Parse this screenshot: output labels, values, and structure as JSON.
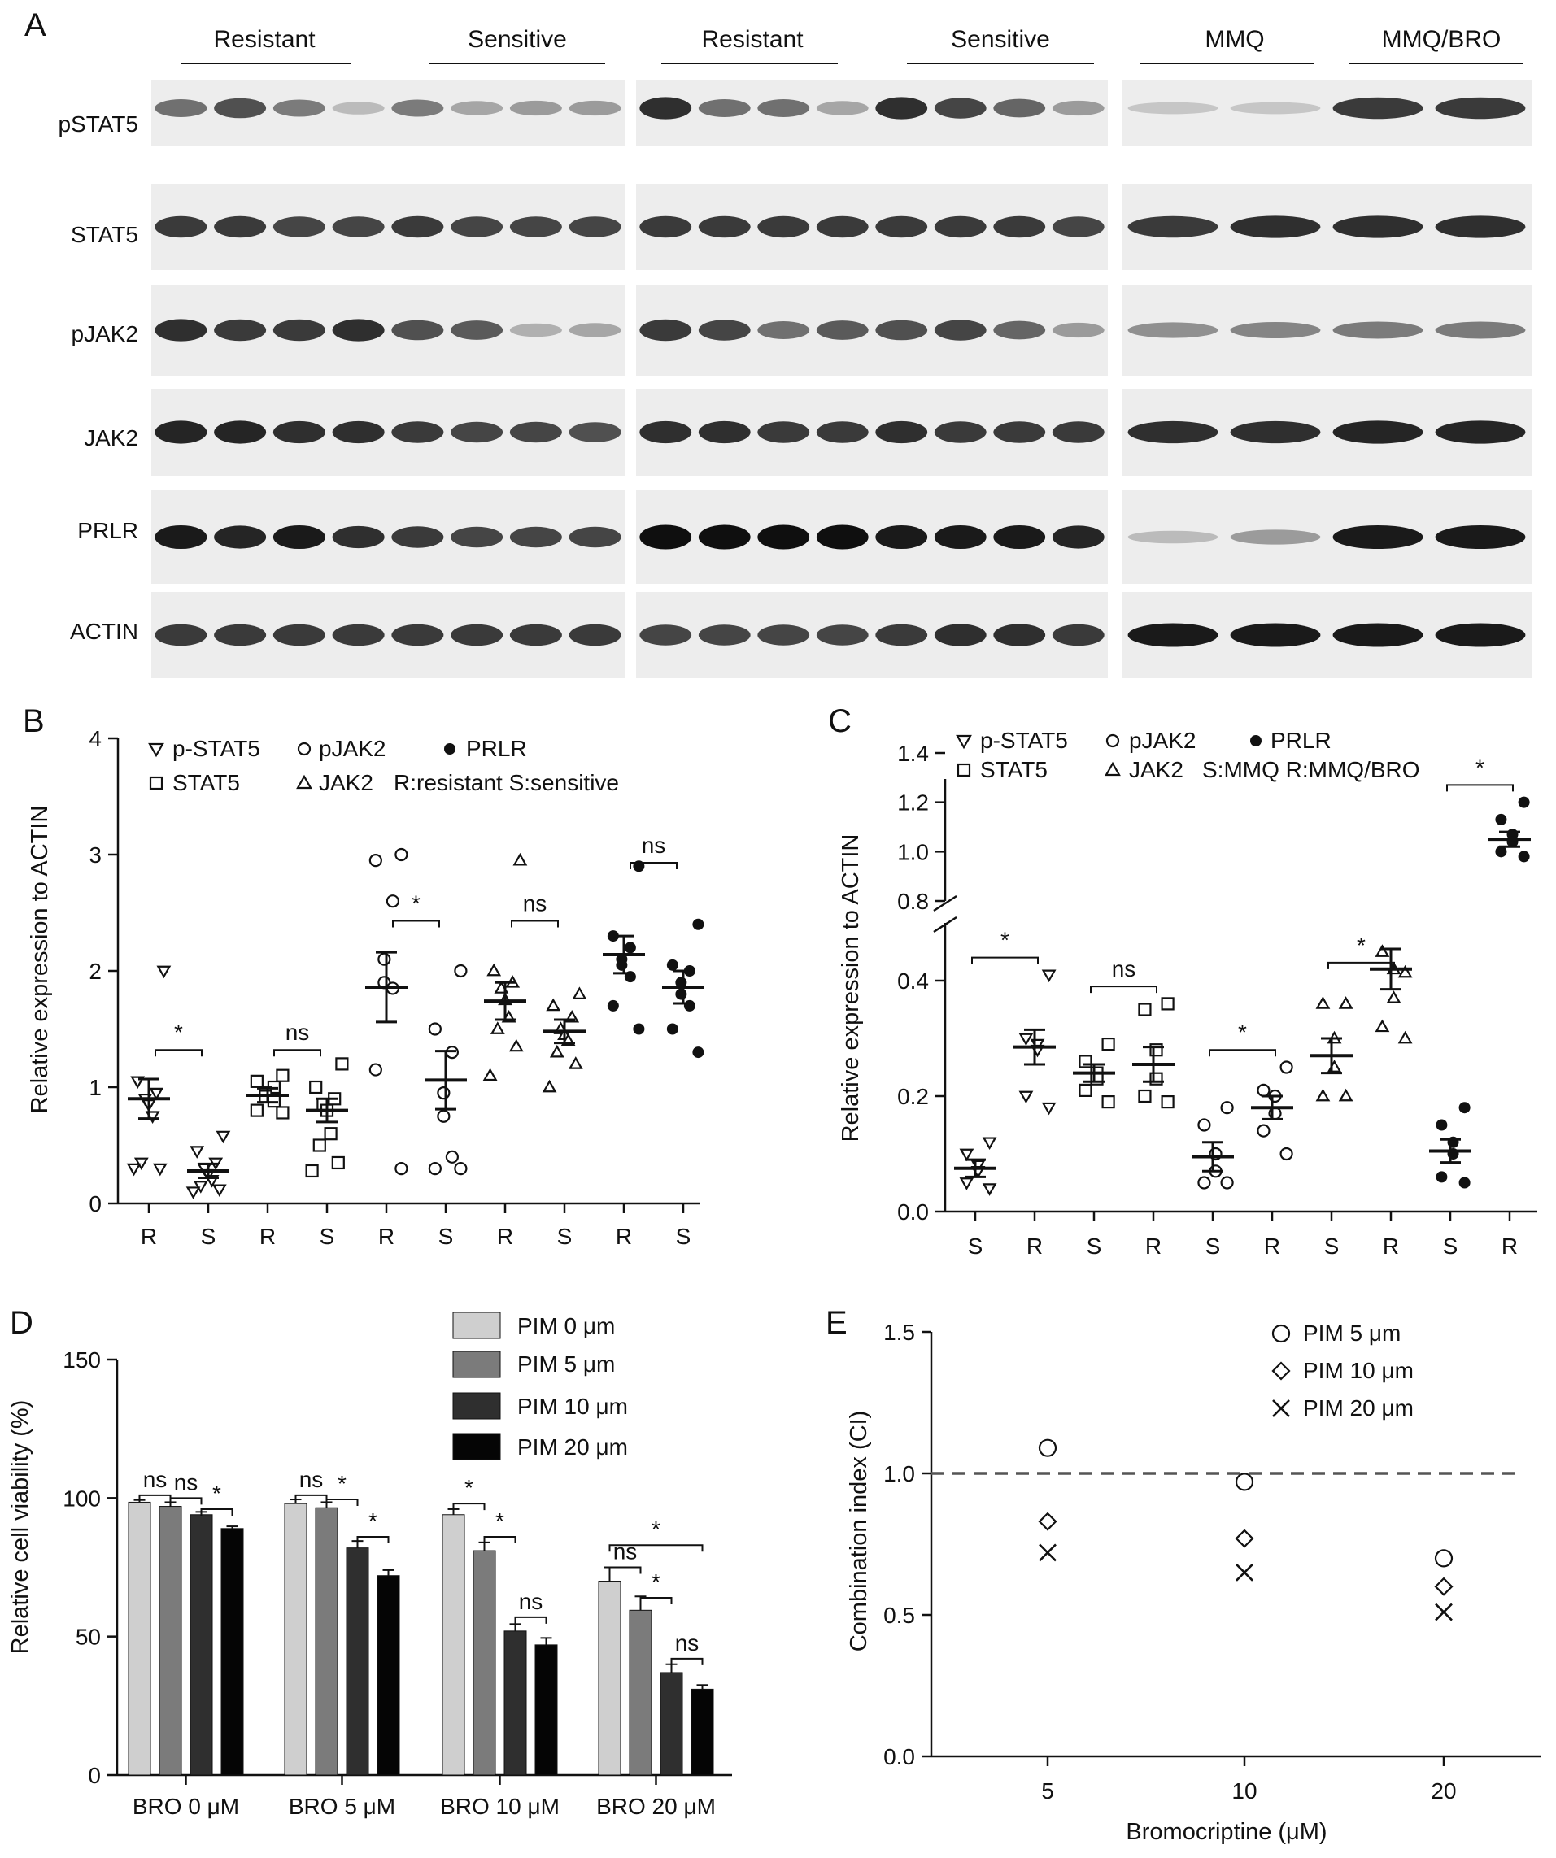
{
  "panels": {
    "A": "A",
    "B": "B",
    "C": "C",
    "D": "D",
    "E": "E"
  },
  "blot": {
    "groups": [
      "Resistant",
      "Sensitive",
      "Resistant",
      "Sensitive",
      "MMQ",
      "MMQ/BRO"
    ],
    "rows": [
      "pSTAT5",
      "STAT5",
      "pJAK2",
      "JAK2",
      "PRLR",
      "ACTIN"
    ],
    "intensity": {
      "left": [
        [
          0.55,
          0.7,
          0.5,
          0.2,
          0.5,
          0.3,
          0.35,
          0.35
        ],
        [
          0.8,
          0.8,
          0.75,
          0.75,
          0.8,
          0.75,
          0.75,
          0.75
        ],
        [
          0.85,
          0.8,
          0.8,
          0.85,
          0.7,
          0.65,
          0.25,
          0.3
        ],
        [
          0.9,
          0.9,
          0.85,
          0.85,
          0.8,
          0.75,
          0.75,
          0.7
        ],
        [
          0.95,
          0.9,
          0.95,
          0.85,
          0.8,
          0.75,
          0.75,
          0.75
        ],
        [
          0.8,
          0.8,
          0.8,
          0.8,
          0.8,
          0.8,
          0.8,
          0.8
        ]
      ],
      "middle": [
        [
          0.85,
          0.55,
          0.55,
          0.3,
          0.85,
          0.75,
          0.6,
          0.35
        ],
        [
          0.8,
          0.8,
          0.8,
          0.8,
          0.8,
          0.8,
          0.8,
          0.75
        ],
        [
          0.8,
          0.75,
          0.55,
          0.65,
          0.7,
          0.75,
          0.6,
          0.35
        ],
        [
          0.85,
          0.85,
          0.8,
          0.8,
          0.85,
          0.8,
          0.8,
          0.8
        ],
        [
          1,
          1,
          1,
          1,
          0.95,
          0.95,
          0.95,
          0.9
        ],
        [
          0.75,
          0.75,
          0.75,
          0.75,
          0.8,
          0.85,
          0.85,
          0.8
        ]
      ],
      "right": [
        [
          0.15,
          0.15,
          0.8,
          0.8
        ],
        [
          0.8,
          0.85,
          0.85,
          0.85
        ],
        [
          0.4,
          0.45,
          0.5,
          0.5
        ],
        [
          0.85,
          0.85,
          0.9,
          0.9
        ],
        [
          0.2,
          0.35,
          0.95,
          0.95
        ],
        [
          0.95,
          0.95,
          0.95,
          0.95
        ]
      ]
    }
  },
  "chart_data": [
    {
      "id": "B",
      "type": "scatter",
      "ylabel": "Relative expression to ACTIN",
      "ylim": [
        0,
        4
      ],
      "yticks": [
        "0",
        "1",
        "2",
        "3",
        "4"
      ],
      "categories": [
        "R",
        "S",
        "R",
        "S",
        "R",
        "S",
        "R",
        "S",
        "R",
        "S"
      ],
      "legend": {
        "row1": [
          {
            "symbol": "tri-down",
            "label": "p-STAT5"
          },
          {
            "symbol": "circle-open",
            "label": "pJAK2"
          },
          {
            "symbol": "circle-filled",
            "label": "PRLR"
          }
        ],
        "row2": [
          {
            "symbol": "square",
            "label": "STAT5"
          },
          {
            "symbol": "tri-up",
            "label": "JAK2"
          }
        ],
        "note": "R:resistant S:sensitive"
      },
      "groups": [
        {
          "series": "p-STAT5",
          "group": "R",
          "marker": "tri-down",
          "mean": 0.9,
          "sem": 0.17,
          "points": [
            2.0,
            1.05,
            0.95,
            0.9,
            0.85,
            0.75,
            0.35,
            0.3,
            0.3
          ]
        },
        {
          "series": "p-STAT5",
          "group": "S",
          "marker": "tri-down",
          "mean": 0.28,
          "sem": 0.06,
          "points": [
            0.58,
            0.45,
            0.35,
            0.3,
            0.25,
            0.2,
            0.15,
            0.12,
            0.1
          ]
        },
        {
          "series": "STAT5",
          "group": "R",
          "marker": "square",
          "mean": 0.93,
          "sem": 0.06,
          "points": [
            1.1,
            1.05,
            1.0,
            0.95,
            0.92,
            0.88,
            0.8,
            0.78
          ]
        },
        {
          "series": "STAT5",
          "group": "S",
          "marker": "square",
          "mean": 0.8,
          "sem": 0.1,
          "points": [
            1.2,
            1.0,
            0.9,
            0.85,
            0.8,
            0.6,
            0.5,
            0.35,
            0.28
          ]
        },
        {
          "series": "pJAK2",
          "group": "R",
          "marker": "circle-open",
          "mean": 1.86,
          "sem": 0.3,
          "points": [
            3.0,
            2.95,
            2.6,
            2.1,
            1.9,
            1.85,
            1.15,
            0.3
          ]
        },
        {
          "series": "pJAK2",
          "group": "S",
          "marker": "circle-open",
          "mean": 1.06,
          "sem": 0.25,
          "points": [
            2.0,
            1.5,
            1.3,
            0.95,
            0.75,
            0.4,
            0.3,
            0.3
          ]
        },
        {
          "series": "JAK2",
          "group": "R",
          "marker": "tri-up",
          "mean": 1.74,
          "sem": 0.16,
          "points": [
            2.95,
            2.0,
            1.9,
            1.85,
            1.75,
            1.6,
            1.5,
            1.35,
            1.1
          ]
        },
        {
          "series": "JAK2",
          "group": "S",
          "marker": "tri-up",
          "mean": 1.48,
          "sem": 0.1,
          "points": [
            1.8,
            1.7,
            1.6,
            1.5,
            1.45,
            1.4,
            1.3,
            1.2,
            1.0
          ]
        },
        {
          "series": "PRLR",
          "group": "R",
          "marker": "circle-filled",
          "mean": 2.14,
          "sem": 0.16,
          "points": [
            2.9,
            2.3,
            2.2,
            2.1,
            2.05,
            1.95,
            1.7,
            1.5
          ]
        },
        {
          "series": "PRLR",
          "group": "S",
          "marker": "circle-filled",
          "mean": 1.86,
          "sem": 0.14,
          "points": [
            2.4,
            2.05,
            2.0,
            1.9,
            1.8,
            1.7,
            1.5,
            1.3
          ]
        }
      ],
      "significance": [
        {
          "pair": [
            0,
            1
          ],
          "level": 1.32,
          "label": "*"
        },
        {
          "pair": [
            2,
            3
          ],
          "level": 1.32,
          "label": "ns"
        },
        {
          "pair": [
            4,
            5
          ],
          "level": 2.43,
          "label": "*"
        },
        {
          "pair": [
            6,
            7
          ],
          "level": 2.43,
          "label": "ns"
        },
        {
          "pair": [
            8,
            9
          ],
          "level": 2.93,
          "label": "ns"
        }
      ]
    },
    {
      "id": "C",
      "type": "scatter",
      "ylabel": "Relative expression to ACTIN",
      "y_break": true,
      "ylim_lower": [
        0,
        0.5
      ],
      "ylim_upper": [
        0.8,
        1.4
      ],
      "yticks_lower": [
        "0.0",
        "0.2",
        "0.4"
      ],
      "yticks_upper": [
        "0.8",
        "1.0",
        "1.2",
        "1.4"
      ],
      "categories": [
        "S",
        "R",
        "S",
        "R",
        "S",
        "R",
        "S",
        "R",
        "S",
        "R"
      ],
      "legend": {
        "row1": [
          {
            "symbol": "tri-down",
            "label": "p-STAT5"
          },
          {
            "symbol": "circle-open",
            "label": "pJAK2"
          },
          {
            "symbol": "circle-filled",
            "label": "PRLR"
          }
        ],
        "row2": [
          {
            "symbol": "square",
            "label": "STAT5"
          },
          {
            "symbol": "tri-up",
            "label": "JAK2"
          }
        ],
        "note": "S:MMQ R:MMQ/BRO"
      },
      "groups": [
        {
          "series": "p-STAT5",
          "group": "S",
          "marker": "tri-down",
          "mean": 0.075,
          "sem": 0.015,
          "points": [
            0.12,
            0.1,
            0.08,
            0.07,
            0.05,
            0.04
          ]
        },
        {
          "series": "p-STAT5",
          "group": "R",
          "marker": "tri-down",
          "mean": 0.285,
          "sem": 0.03,
          "points": [
            0.41,
            0.3,
            0.29,
            0.28,
            0.2,
            0.18
          ]
        },
        {
          "series": "STAT5",
          "group": "S",
          "marker": "square",
          "mean": 0.24,
          "sem": 0.015,
          "points": [
            0.29,
            0.26,
            0.24,
            0.23,
            0.21,
            0.19
          ]
        },
        {
          "series": "STAT5",
          "group": "R",
          "marker": "square",
          "mean": 0.255,
          "sem": 0.03,
          "points": [
            0.36,
            0.35,
            0.28,
            0.23,
            0.2,
            0.19
          ]
        },
        {
          "series": "pJAK2",
          "group": "S",
          "marker": "circle-open",
          "mean": 0.095,
          "sem": 0.025,
          "points": [
            0.18,
            0.15,
            0.1,
            0.07,
            0.05,
            0.05
          ]
        },
        {
          "series": "pJAK2",
          "group": "R",
          "marker": "circle-open",
          "mean": 0.18,
          "sem": 0.02,
          "points": [
            0.25,
            0.21,
            0.2,
            0.17,
            0.14,
            0.1
          ]
        },
        {
          "series": "JAK2",
          "group": "S",
          "marker": "tri-up",
          "mean": 0.27,
          "sem": 0.03,
          "points": [
            0.36,
            0.36,
            0.3,
            0.25,
            0.2,
            0.2
          ]
        },
        {
          "series": "JAK2",
          "group": "R",
          "marker": "tri-up",
          "mean": 0.42,
          "sem": 0.035,
          "points": [
            0.51,
            0.45,
            0.42,
            0.37,
            0.32,
            0.3
          ]
        },
        {
          "series": "PRLR",
          "group": "S",
          "marker": "circle-filled",
          "mean": 0.105,
          "sem": 0.02,
          "points": [
            0.18,
            0.15,
            0.12,
            0.1,
            0.06,
            0.05
          ]
        },
        {
          "series": "PRLR",
          "group": "R",
          "marker": "circle-filled",
          "mean": 1.05,
          "sem": 0.03,
          "points": [
            1.2,
            1.13,
            1.07,
            1.04,
            1.0,
            0.98
          ]
        }
      ],
      "significance": [
        {
          "pair": [
            0,
            1
          ],
          "level": 0.44,
          "label": "*"
        },
        {
          "pair": [
            2,
            3
          ],
          "level": 0.39,
          "label": "ns"
        },
        {
          "pair": [
            4,
            5
          ],
          "level": 0.28,
          "label": "*"
        },
        {
          "pair": [
            6,
            7
          ],
          "level": 0.55,
          "label": "*"
        },
        {
          "pair": [
            8,
            9
          ],
          "level": 1.27,
          "label": "*"
        }
      ]
    },
    {
      "id": "D",
      "type": "bar",
      "ylabel": "Relative cell viability (%)",
      "ylim": [
        0,
        150
      ],
      "yticks": [
        "0",
        "50",
        "100",
        "150"
      ],
      "categories": [
        "BRO 0 μM",
        "BRO 5 μM",
        "BRO 10 μM",
        "BRO 20 μM"
      ],
      "series": [
        {
          "name": "PIM 0 μm",
          "color": "#cfcfcf",
          "values": [
            98.5,
            98,
            94,
            70
          ],
          "errors": [
            0.8,
            1.5,
            2,
            5
          ]
        },
        {
          "name": "PIM 5 μm",
          "color": "#7b7b7b",
          "values": [
            97,
            96.5,
            81,
            59.5
          ],
          "errors": [
            1.5,
            2,
            3,
            5
          ]
        },
        {
          "name": "PIM 10 μm",
          "color": "#2f2f2f",
          "values": [
            94,
            82,
            52,
            37
          ],
          "errors": [
            1,
            2.5,
            2.5,
            3
          ]
        },
        {
          "name": "PIM 20 μm",
          "color": "#050505",
          "values": [
            89,
            72,
            47,
            31
          ],
          "errors": [
            0.8,
            2,
            2.5,
            1.5
          ]
        }
      ],
      "significance": [
        {
          "cat": 0,
          "from": 0,
          "to": 1,
          "level": 101,
          "label": "ns"
        },
        {
          "cat": 0,
          "from": 1,
          "to": 2,
          "level": 100,
          "label": "ns"
        },
        {
          "cat": 0,
          "from": 2,
          "to": 3,
          "level": 96,
          "label": "*"
        },
        {
          "cat": 1,
          "from": 0,
          "to": 1,
          "level": 101,
          "label": "ns"
        },
        {
          "cat": 1,
          "from": 1,
          "to": 2,
          "level": 99.5,
          "label": "*"
        },
        {
          "cat": 1,
          "from": 2,
          "to": 3,
          "level": 86,
          "label": "*"
        },
        {
          "cat": 2,
          "from": 0,
          "to": 1,
          "level": 98,
          "label": "*"
        },
        {
          "cat": 2,
          "from": 1,
          "to": 2,
          "level": 86,
          "label": "*"
        },
        {
          "cat": 2,
          "from": 2,
          "to": 3,
          "level": 57,
          "label": "ns"
        },
        {
          "cat": 3,
          "from": 0,
          "to": 3,
          "level": 83,
          "label": "*"
        },
        {
          "cat": 3,
          "from": 0,
          "to": 1,
          "level": 75,
          "label": "ns"
        },
        {
          "cat": 3,
          "from": 1,
          "to": 2,
          "level": 64,
          "label": "*"
        },
        {
          "cat": 3,
          "from": 2,
          "to": 3,
          "level": 42,
          "label": "ns"
        }
      ]
    },
    {
      "id": "E",
      "type": "scatter",
      "ylabel": "Combination index (CI)",
      "xlabel": "Bromocriptine (μM)",
      "ylim": [
        0,
        1.5
      ],
      "yticks": [
        "0.0",
        "0.5",
        "1.0",
        "1.5"
      ],
      "x": [
        "5",
        "10",
        "20"
      ],
      "reference_line": 1.0,
      "series": [
        {
          "name": "PIM 5 μm",
          "marker": "circle-open",
          "values": [
            1.09,
            0.97,
            0.7
          ]
        },
        {
          "name": "PIM 10 μm",
          "marker": "diamond",
          "values": [
            0.83,
            0.77,
            0.6
          ]
        },
        {
          "name": "PIM 20 μm",
          "marker": "cross",
          "values": [
            0.72,
            0.65,
            0.51
          ]
        }
      ]
    }
  ]
}
